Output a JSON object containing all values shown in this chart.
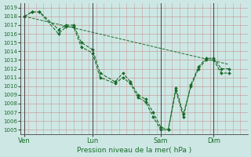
{
  "xlabel": "Pression niveau de la mer( hPa )",
  "bg_color": "#cde8e4",
  "line_color": "#1a6b2a",
  "grid_color_major": "#c8a0a0",
  "grid_color_minor": "#b8d8d0",
  "ylim": [
    1004.5,
    1019.5
  ],
  "yticks": [
    1005,
    1006,
    1007,
    1008,
    1009,
    1010,
    1011,
    1012,
    1013,
    1014,
    1015,
    1016,
    1017,
    1018,
    1019
  ],
  "xtick_labels": [
    "Ven",
    "Lun",
    "Sam",
    "Dim"
  ],
  "xtick_positions": [
    0,
    36,
    72,
    100
  ],
  "vline_positions": [
    0,
    36,
    72,
    100
  ],
  "xlim": [
    -2,
    118
  ],
  "line1_x": [
    0,
    4,
    8,
    18,
    22,
    26,
    30,
    36,
    40,
    48,
    52,
    56,
    60,
    64,
    68,
    72,
    76,
    80,
    84,
    88,
    92,
    96,
    100,
    104,
    108
  ],
  "line1_y": [
    1018.0,
    1018.5,
    1018.5,
    1016.5,
    1017.0,
    1017.0,
    1015.0,
    1014.2,
    1011.5,
    1010.5,
    1011.5,
    1010.5,
    1009.0,
    1008.5,
    1007.0,
    1005.3,
    1005.0,
    1009.8,
    1006.8,
    1010.0,
    1012.0,
    1013.0,
    1013.0,
    1011.5,
    1011.5
  ],
  "line2_x": [
    0,
    4,
    8,
    18,
    22,
    26,
    30,
    36,
    40,
    48,
    52,
    56,
    60,
    64,
    68,
    72,
    76,
    80,
    84,
    88,
    92,
    96,
    100,
    104,
    108
  ],
  "line2_y": [
    1018.0,
    1018.5,
    1018.5,
    1016.0,
    1016.8,
    1016.8,
    1014.5,
    1013.8,
    1011.0,
    1010.3,
    1011.0,
    1010.3,
    1008.7,
    1008.2,
    1006.5,
    1005.0,
    1005.0,
    1009.5,
    1006.5,
    1010.2,
    1012.2,
    1013.2,
    1013.2,
    1012.0,
    1012.0
  ],
  "trend_x": [
    0,
    108
  ],
  "trend_y": [
    1018.0,
    1012.5
  ],
  "spine_color": "#444444"
}
